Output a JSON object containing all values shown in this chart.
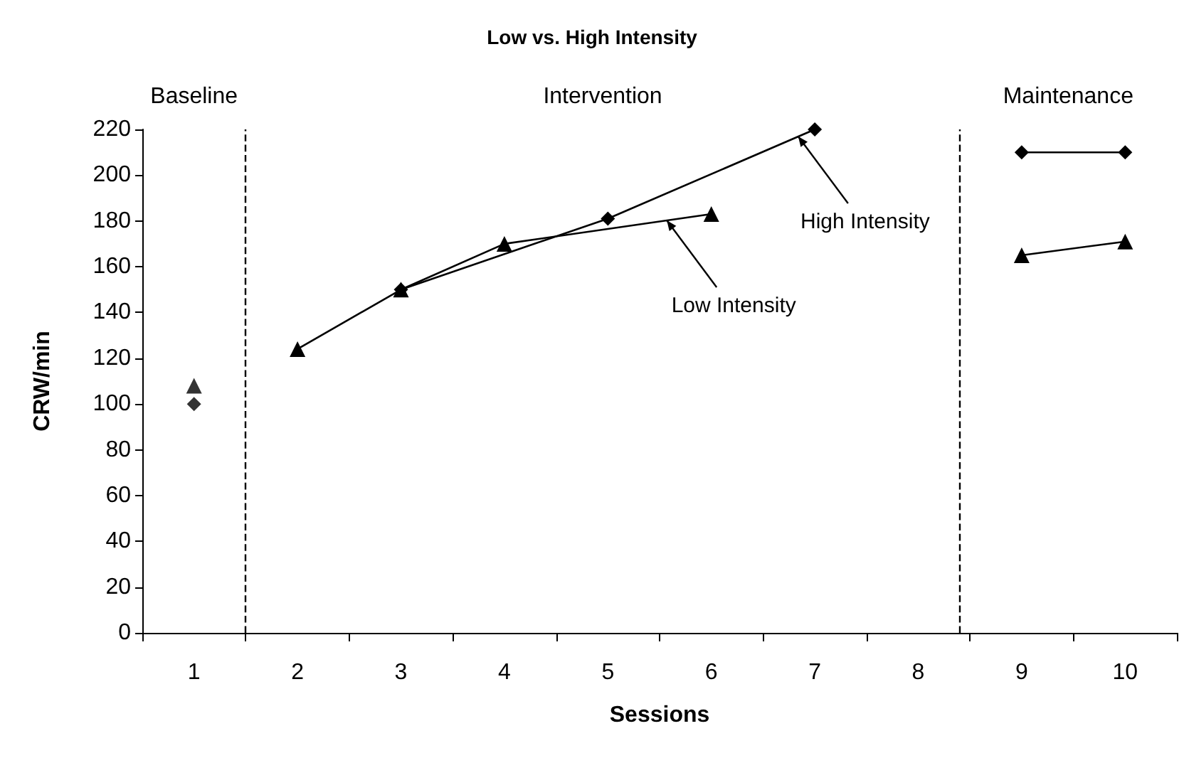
{
  "chart_data": {
    "type": "line",
    "title": "Low vs. High Intensity",
    "xlabel": "Sessions",
    "ylabel": "CRW/min",
    "series": [
      {
        "type": "scatter",
        "color": "#000000",
        "marker": "triangle",
        "x": [
          1
        ],
        "values": [
          108
        ]
      },
      {
        "type": "scatter",
        "color": "#000000",
        "marker": "diamond",
        "x": [
          1
        ],
        "values": [
          100
        ]
      },
      {
        "color": "#000000",
        "marker": "triangle",
        "x": [
          2,
          3,
          4,
          6
        ],
        "values": [
          124,
          150,
          170,
          183
        ]
      },
      {
        "color": "#000000",
        "marker": "diamond",
        "x": [
          3,
          5,
          7
        ],
        "values": [
          150,
          181,
          220
        ]
      },
      {
        "color": "#000000",
        "marker": "diamond",
        "x": [
          9,
          10
        ],
        "values": [
          210,
          210
        ]
      },
      {
        "color": "#000000",
        "marker": "triangle",
        "x": [
          9,
          10
        ],
        "values": [
          165,
          171
        ]
      }
    ],
    "xlim": [
      0.5,
      10.5
    ],
    "xticks": [
      1,
      2,
      3,
      4,
      5,
      6,
      7,
      8,
      9,
      10
    ],
    "ylim": [
      0,
      220
    ],
    "yticks": [
      0,
      20,
      40,
      60,
      80,
      100,
      120,
      140,
      160,
      180,
      200,
      220
    ],
    "ref_lines": [
      {
        "axis": "x",
        "value": 1.5,
        "line_style": "dashed",
        "color": "#000000"
      },
      {
        "axis": "x",
        "value": 8.4,
        "line_style": "dashed",
        "color": "#000000"
      }
    ],
    "annotations": [
      "Baseline",
      "Intervention",
      "Maintenance",
      {
        "text": "High Intensity",
        "x": 6.84,
        "y": 216.9
      },
      {
        "text": "Low Intensity",
        "x": 5.57,
        "y": 180.2
      }
    ],
    "grid": false,
    "line_style": "solid"
  }
}
